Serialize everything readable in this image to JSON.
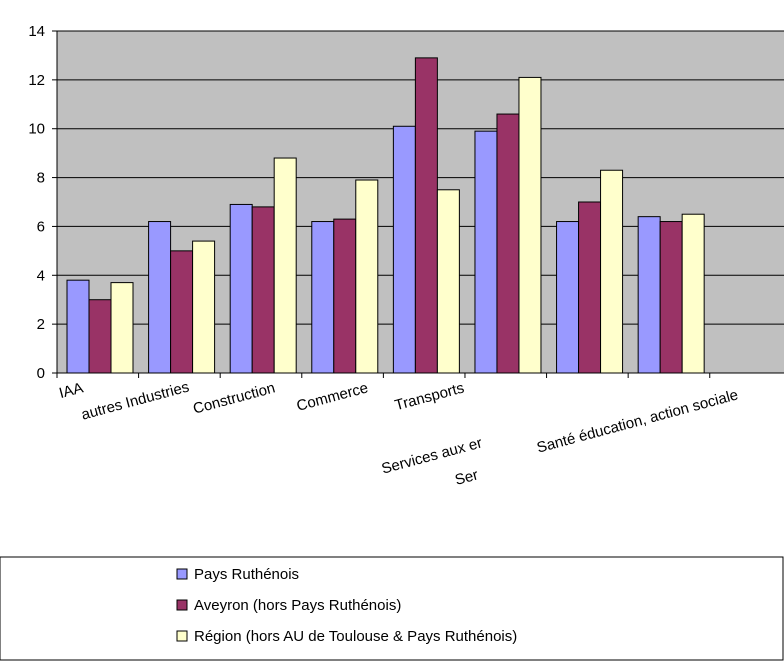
{
  "chart_data": {
    "type": "bar",
    "title": "",
    "xlabel": "",
    "ylabel": "",
    "ylim": [
      0,
      14
    ],
    "yticks": [
      0,
      2,
      4,
      6,
      8,
      10,
      12,
      14
    ],
    "grid": true,
    "legend_position": "bottom",
    "categories": [
      "IAA",
      "autres Industries",
      "Construction",
      "Commerce",
      "Transports",
      "Services aux er",
      "Ser",
      "Santé éducation, action sociale",
      ""
    ],
    "series": [
      {
        "name": "Pays Ruthénois",
        "color": "#9999ff",
        "values": [
          3.8,
          6.2,
          6.9,
          6.2,
          10.1,
          9.9,
          6.2,
          6.4,
          null
        ]
      },
      {
        "name": "Aveyron (hors Pays Ruthénois)",
        "color": "#993366",
        "values": [
          3.0,
          5.0,
          6.8,
          6.3,
          12.9,
          10.6,
          7.0,
          6.2,
          null
        ]
      },
      {
        "name": "Région (hors AU de Toulouse & Pays Ruthénois)",
        "color": "#ffffcc",
        "values": [
          3.7,
          5.4,
          8.8,
          7.9,
          7.5,
          12.1,
          8.3,
          6.5,
          null
        ]
      }
    ],
    "plot_bg": "#c0c0c0",
    "axis_color": "#000000"
  }
}
